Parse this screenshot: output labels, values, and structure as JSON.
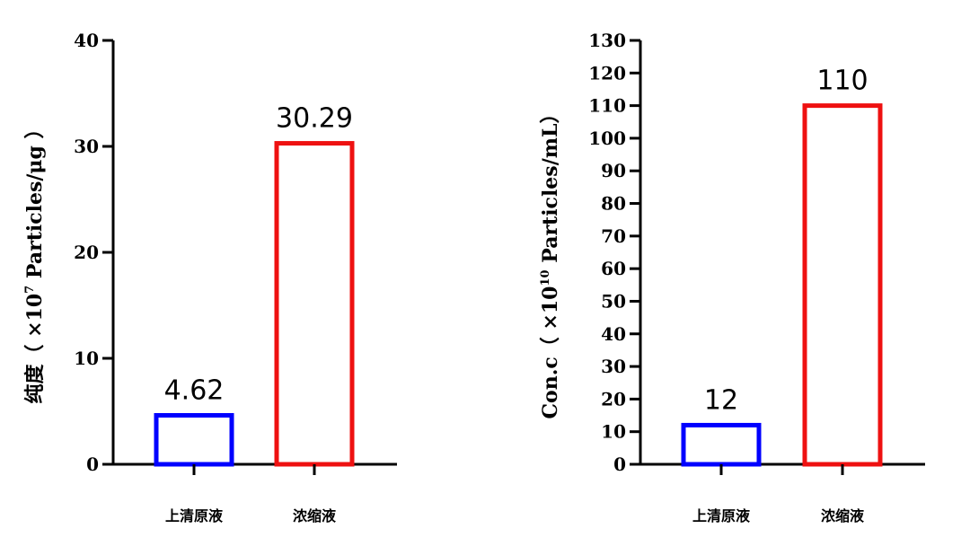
{
  "chart_data": [
    {
      "type": "bar",
      "categories": [
        "上清原液",
        "浓缩液"
      ],
      "values": [
        4.62,
        30.29
      ],
      "data_labels": [
        "4.62",
        "30.29"
      ],
      "bar_colors": [
        "#0000ff",
        "#ee1111"
      ],
      "ylabel": {
        "prefix": "纯度（ ×10",
        "sup": "7",
        "suffix": " Particles/μg ）"
      },
      "ylim": [
        0,
        40
      ],
      "yticks": [
        "0",
        "10",
        "20",
        "30",
        "40"
      ],
      "grid": false
    },
    {
      "type": "bar",
      "categories": [
        "上清原液",
        "浓缩液"
      ],
      "values": [
        12,
        110
      ],
      "data_labels": [
        "12",
        "110"
      ],
      "bar_colors": [
        "#0000ff",
        "#ee1111"
      ],
      "ylabel": {
        "prefix": "Con.c（ ×10",
        "sup": "10",
        "suffix": " Particles/mL）"
      },
      "ylim": [
        0,
        130
      ],
      "yticks": [
        "0",
        "10",
        "20",
        "30",
        "40",
        "50",
        "60",
        "70",
        "80",
        "90",
        "100",
        "110",
        "120",
        "130"
      ],
      "grid": false
    }
  ]
}
